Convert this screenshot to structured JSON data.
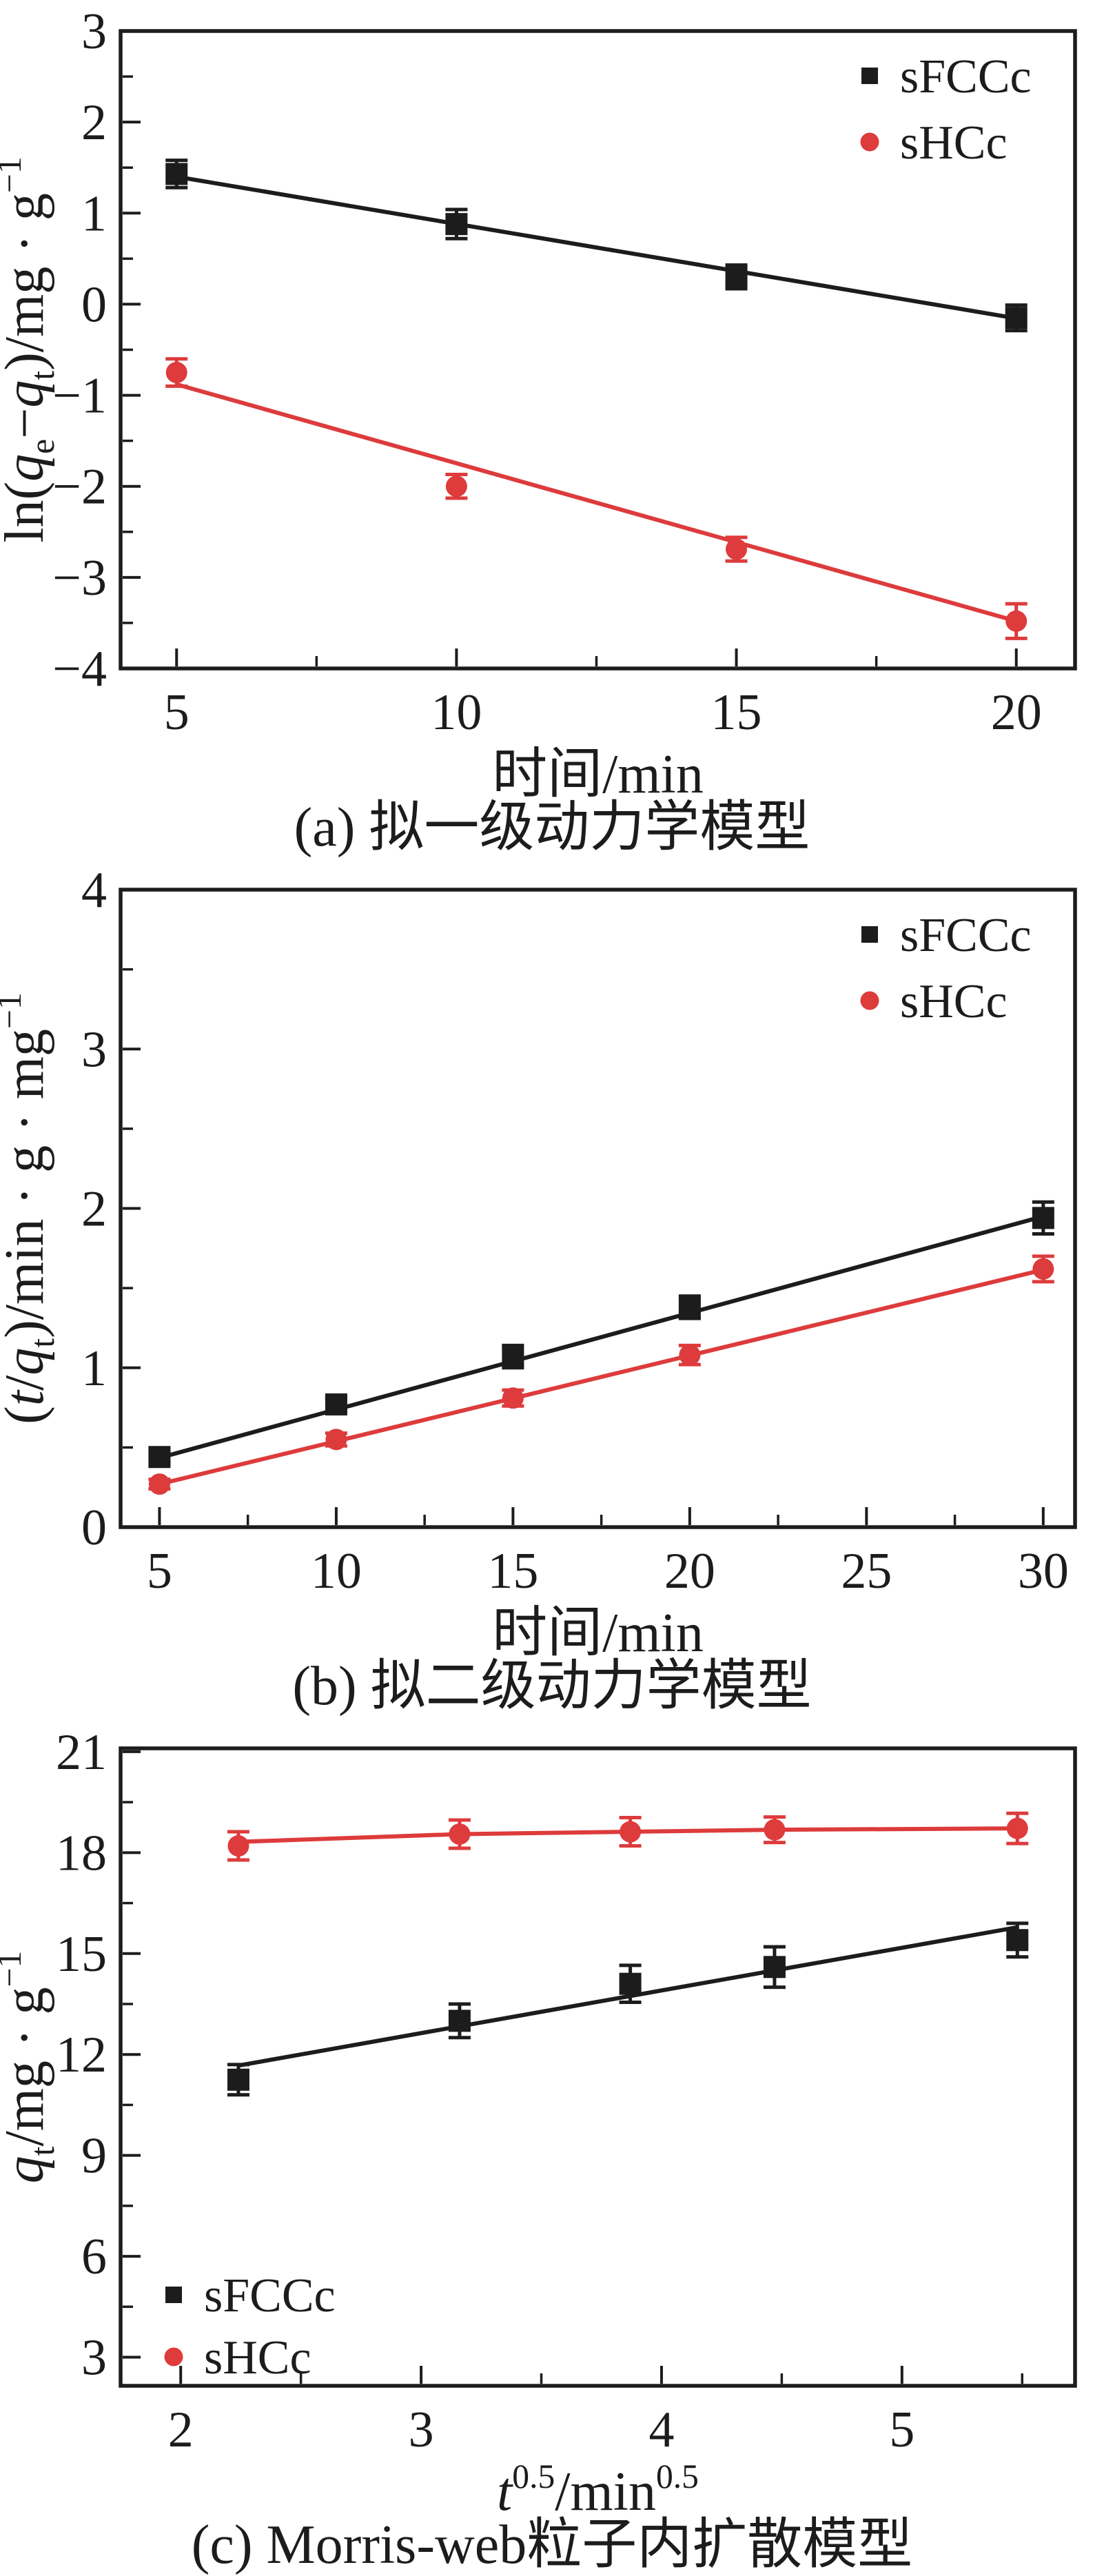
{
  "page": {
    "background": "#ffffff"
  },
  "colors": {
    "frame": "#1c1c1c",
    "black_series": "#1c1c1c",
    "red_series": "#dd3b3c"
  },
  "chart_data": [
    {
      "id": "a",
      "type": "scatter",
      "caption": "(a) 拟一级动力学模型",
      "xlabel": "时间/min",
      "ylabel": "ln(qe−qt)/mg · g−1",
      "xlabel_segments": [
        {
          "t": "时间/min",
          "k": "n"
        }
      ],
      "ylabel_segments": [
        {
          "t": "ln(",
          "k": "n"
        },
        {
          "t": "q",
          "k": "i"
        },
        {
          "t": "e",
          "k": "sub"
        },
        {
          "t": "−",
          "k": "n"
        },
        {
          "t": "q",
          "k": "i"
        },
        {
          "t": "t",
          "k": "sub"
        },
        {
          "t": ")/mg",
          "k": "n"
        },
        {
          "t": " · ",
          "k": "n"
        },
        {
          "t": "g",
          "k": "n"
        },
        {
          "t": "−1",
          "k": "sup"
        }
      ],
      "xlim": [
        4,
        21.05
      ],
      "ylim": [
        -4,
        3
      ],
      "grid": false,
      "x_ticks": {
        "values": [
          5,
          10,
          15,
          20
        ],
        "labels": [
          "5",
          "10",
          "15",
          "20"
        ],
        "minor": [
          7.5,
          12.5,
          17.5
        ]
      },
      "y_ticks": {
        "values": [
          3,
          2,
          1,
          0,
          -1,
          -2,
          -3,
          -4
        ],
        "labels": [
          "3",
          "2",
          "1",
          "0",
          "−1",
          "−2",
          "−3",
          "−4"
        ],
        "minor": [
          2.5,
          1.5,
          0.5,
          -0.5,
          -1.5,
          -2.5,
          -3.5
        ]
      },
      "legend": {
        "position": "top-right",
        "entries": [
          {
            "label": "sFCCc",
            "marker": "square",
            "color": "#1c1c1c"
          },
          {
            "label": "sHCc",
            "marker": "circle",
            "color": "#dd3b3c"
          }
        ]
      },
      "series": [
        {
          "name": "sFCCc",
          "marker": "square",
          "color": "#1c1c1c",
          "x": [
            5,
            10,
            15,
            20
          ],
          "y": [
            1.43,
            0.88,
            0.3,
            -0.15
          ],
          "yerr": [
            0.15,
            0.16,
            0.13,
            0.14
          ],
          "line": {
            "type": "segment",
            "x": [
              5,
              20
            ],
            "y": [
              1.4,
              -0.155
            ]
          }
        },
        {
          "name": "sHCc",
          "marker": "circle",
          "color": "#dd3b3c",
          "x": [
            5,
            10,
            15,
            20
          ],
          "y": [
            -0.75,
            -2.0,
            -2.69,
            -3.48
          ],
          "yerr": [
            0.15,
            0.13,
            0.13,
            0.19
          ],
          "line": {
            "type": "segment",
            "x": [
              5,
              20
            ],
            "y": [
              -0.88,
              -3.48
            ]
          }
        }
      ]
    },
    {
      "id": "b",
      "type": "scatter",
      "caption": "(b) 拟二级动力学模型",
      "xlabel": "时间/min",
      "ylabel": "(t/qt)/min · g · mg−1",
      "xlabel_segments": [
        {
          "t": "时间/min",
          "k": "n"
        }
      ],
      "ylabel_segments": [
        {
          "t": "(",
          "k": "n"
        },
        {
          "t": "t",
          "k": "i"
        },
        {
          "t": "/",
          "k": "n"
        },
        {
          "t": "q",
          "k": "i"
        },
        {
          "t": "t",
          "k": "sub"
        },
        {
          "t": ")/min",
          "k": "n"
        },
        {
          "t": " · ",
          "k": "n"
        },
        {
          "t": "g",
          "k": "n"
        },
        {
          "t": " · ",
          "k": "n"
        },
        {
          "t": "mg",
          "k": "n"
        },
        {
          "t": "−1",
          "k": "sup"
        }
      ],
      "xlim": [
        3.9,
        30.9
      ],
      "ylim": [
        0,
        4
      ],
      "grid": false,
      "x_ticks": {
        "values": [
          5,
          10,
          15,
          20,
          25,
          30
        ],
        "labels": [
          "5",
          "10",
          "15",
          "20",
          "25",
          "30"
        ],
        "minor": [
          7.5,
          12.5,
          17.5,
          22.5,
          27.5
        ]
      },
      "y_ticks": {
        "values": [
          4,
          3,
          2,
          1,
          0
        ],
        "labels": [
          "4",
          "3",
          "2",
          "1",
          "0"
        ],
        "minor": [
          3.5,
          2.5,
          1.5,
          0.5
        ]
      },
      "legend": {
        "position": "top-right",
        "entries": [
          {
            "label": "sFCCc",
            "marker": "square",
            "color": "#1c1c1c"
          },
          {
            "label": "sHCc",
            "marker": "circle",
            "color": "#dd3b3c"
          }
        ]
      },
      "series": [
        {
          "name": "sFCCc",
          "marker": "square",
          "color": "#1c1c1c",
          "x": [
            5,
            10,
            15,
            20,
            30
          ],
          "y": [
            0.44,
            0.77,
            1.07,
            1.38,
            1.94
          ],
          "yerr": [
            0.03,
            0.04,
            0.07,
            0.07,
            0.1
          ],
          "line": {
            "type": "segment",
            "x": [
              5,
              30
            ],
            "y": [
              0.435,
              1.95
            ]
          }
        },
        {
          "name": "sHCc",
          "marker": "circle",
          "color": "#dd3b3c",
          "x": [
            5,
            10,
            15,
            20,
            30
          ],
          "y": [
            0.27,
            0.55,
            0.81,
            1.08,
            1.62
          ],
          "yerr": [
            0.03,
            0.04,
            0.05,
            0.06,
            0.08
          ],
          "line": {
            "type": "segment",
            "x": [
              5,
              30
            ],
            "y": [
              0.27,
              1.615
            ]
          }
        }
      ]
    },
    {
      "id": "c",
      "type": "scatter",
      "caption": "(c) Morris-web粒子内扩散模型",
      "xlabel": "t0.5/min0.5",
      "ylabel": "qt/mg · g−1",
      "xlabel_segments": [
        {
          "t": "t",
          "k": "i"
        },
        {
          "t": "0.5",
          "k": "sup"
        },
        {
          "t": "/min",
          "k": "n"
        },
        {
          "t": "0.5",
          "k": "sup"
        }
      ],
      "ylabel_segments": [
        {
          "t": "q",
          "k": "i"
        },
        {
          "t": "t",
          "k": "sub"
        },
        {
          "t": "/mg",
          "k": "n"
        },
        {
          "t": " · ",
          "k": "n"
        },
        {
          "t": "g",
          "k": "n"
        },
        {
          "t": "−1",
          "k": "sup"
        }
      ],
      "xlim": [
        1.75,
        5.72
      ],
      "ylim": [
        2.15,
        21.1
      ],
      "grid": false,
      "x_ticks": {
        "values": [
          2,
          3,
          4,
          5
        ],
        "labels": [
          "2",
          "3",
          "4",
          "5"
        ],
        "minor": [
          2.5,
          3.5,
          4.5,
          5.5
        ]
      },
      "y_ticks": {
        "values": [
          21,
          18,
          15,
          12,
          9,
          6,
          3
        ],
        "labels": [
          "21",
          "18",
          "15",
          "12",
          "9",
          "6",
          "3"
        ],
        "minor": [
          19.5,
          16.5,
          13.5,
          10.5,
          7.5,
          4.5
        ]
      },
      "legend": {
        "position": "bottom-left",
        "entries": [
          {
            "label": "sFCCc",
            "marker": "square",
            "color": "#1c1c1c"
          },
          {
            "label": "sHCc",
            "marker": "circle",
            "color": "#dd3b3c"
          }
        ]
      },
      "series": [
        {
          "name": "sFCCc",
          "marker": "square",
          "color": "#1c1c1c",
          "x": [
            2.24,
            3.16,
            3.87,
            4.47,
            5.48
          ],
          "y": [
            11.25,
            13.0,
            14.1,
            14.6,
            15.4
          ],
          "yerr": [
            0.45,
            0.5,
            0.55,
            0.6,
            0.5
          ],
          "line": {
            "type": "segment",
            "x": [
              2.24,
              5.48
            ],
            "y": [
              11.67,
              15.78
            ]
          }
        },
        {
          "name": "sHCc",
          "marker": "circle",
          "color": "#dd3b3c",
          "x": [
            2.24,
            3.16,
            3.87,
            4.47,
            5.48
          ],
          "y": [
            18.2,
            18.55,
            18.62,
            18.68,
            18.72
          ],
          "yerr": [
            0.42,
            0.42,
            0.42,
            0.38,
            0.45
          ],
          "line": {
            "type": "poly",
            "x": [
              2.24,
              3.16,
              3.87,
              4.47,
              5.48
            ],
            "y": [
              18.32,
              18.55,
              18.62,
              18.68,
              18.72
            ]
          }
        }
      ]
    }
  ]
}
